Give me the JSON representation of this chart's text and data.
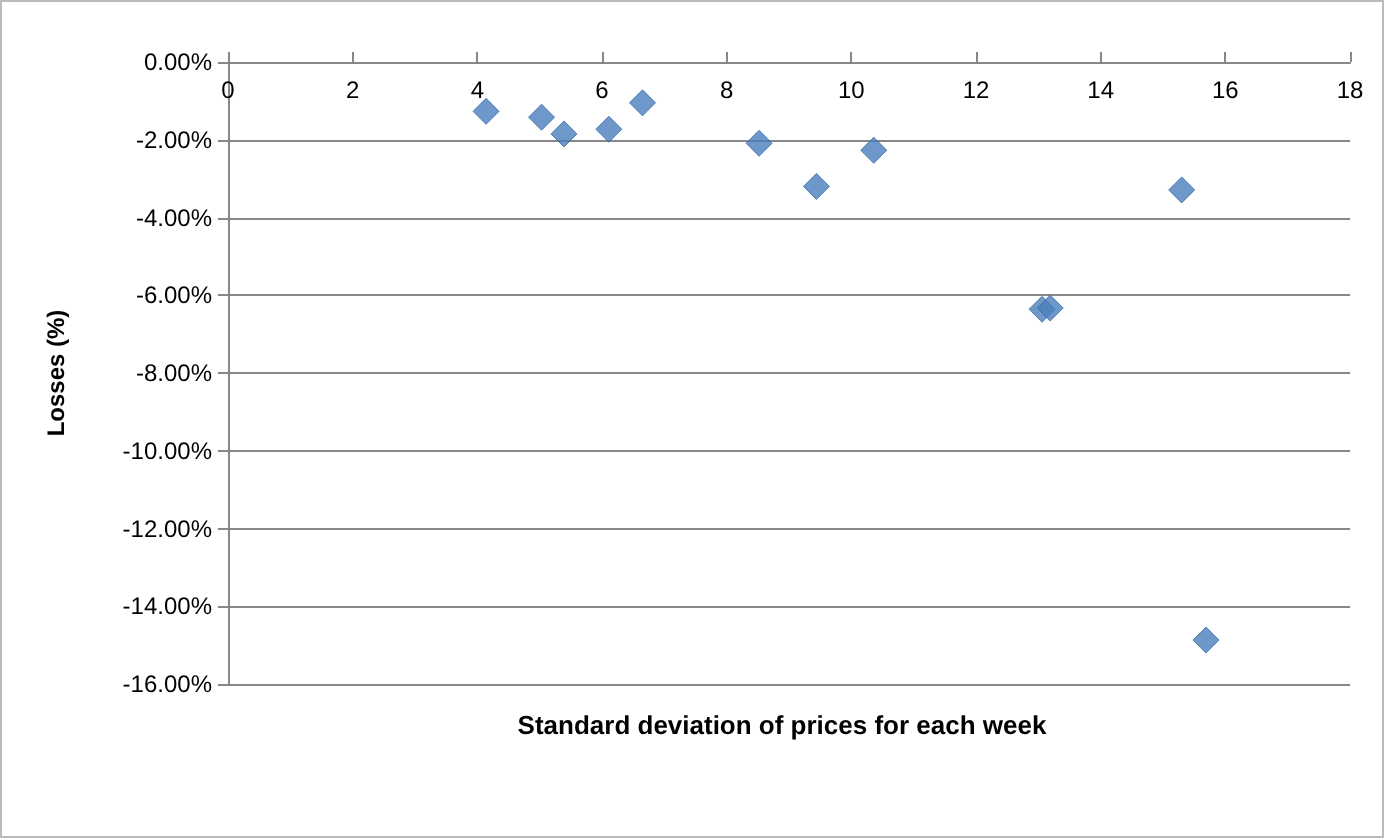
{
  "chart_data": {
    "type": "scatter",
    "xlabel": "Standard deviation of prices for each week",
    "ylabel": "Losses (%)",
    "series": [
      {
        "color": "#4a7ebb",
        "x": [
          4.14,
          5.03,
          5.39,
          6.11,
          6.65,
          8.52,
          9.44,
          10.36,
          13.06,
          13.19,
          15.3,
          15.69
        ],
        "values": [
          -1.27,
          -1.42,
          -1.85,
          -1.73,
          -1.05,
          -2.09,
          -3.2,
          -2.27,
          -6.36,
          -6.33,
          -3.29,
          -14.87
        ]
      }
    ],
    "xlim": [
      0,
      18
    ],
    "xticks": [
      0,
      2,
      4,
      6,
      8,
      10,
      12,
      14,
      16,
      18
    ],
    "ylim": [
      -16,
      0
    ],
    "yticks": [
      {
        "value": -16,
        "label": "-16.00%"
      },
      {
        "value": -14,
        "label": "-14.00%"
      },
      {
        "value": -12,
        "label": "-12.00%"
      },
      {
        "value": -10,
        "label": "-10.00%"
      },
      {
        "value": -8,
        "label": "-8.00%"
      },
      {
        "value": -6,
        "label": "-6.00%"
      },
      {
        "value": -4,
        "label": "-4.00%"
      },
      {
        "value": -2,
        "label": "-2.00%"
      },
      {
        "value": 0,
        "label": "0.00%"
      }
    ],
    "grid": "y",
    "marker": "diamond"
  }
}
